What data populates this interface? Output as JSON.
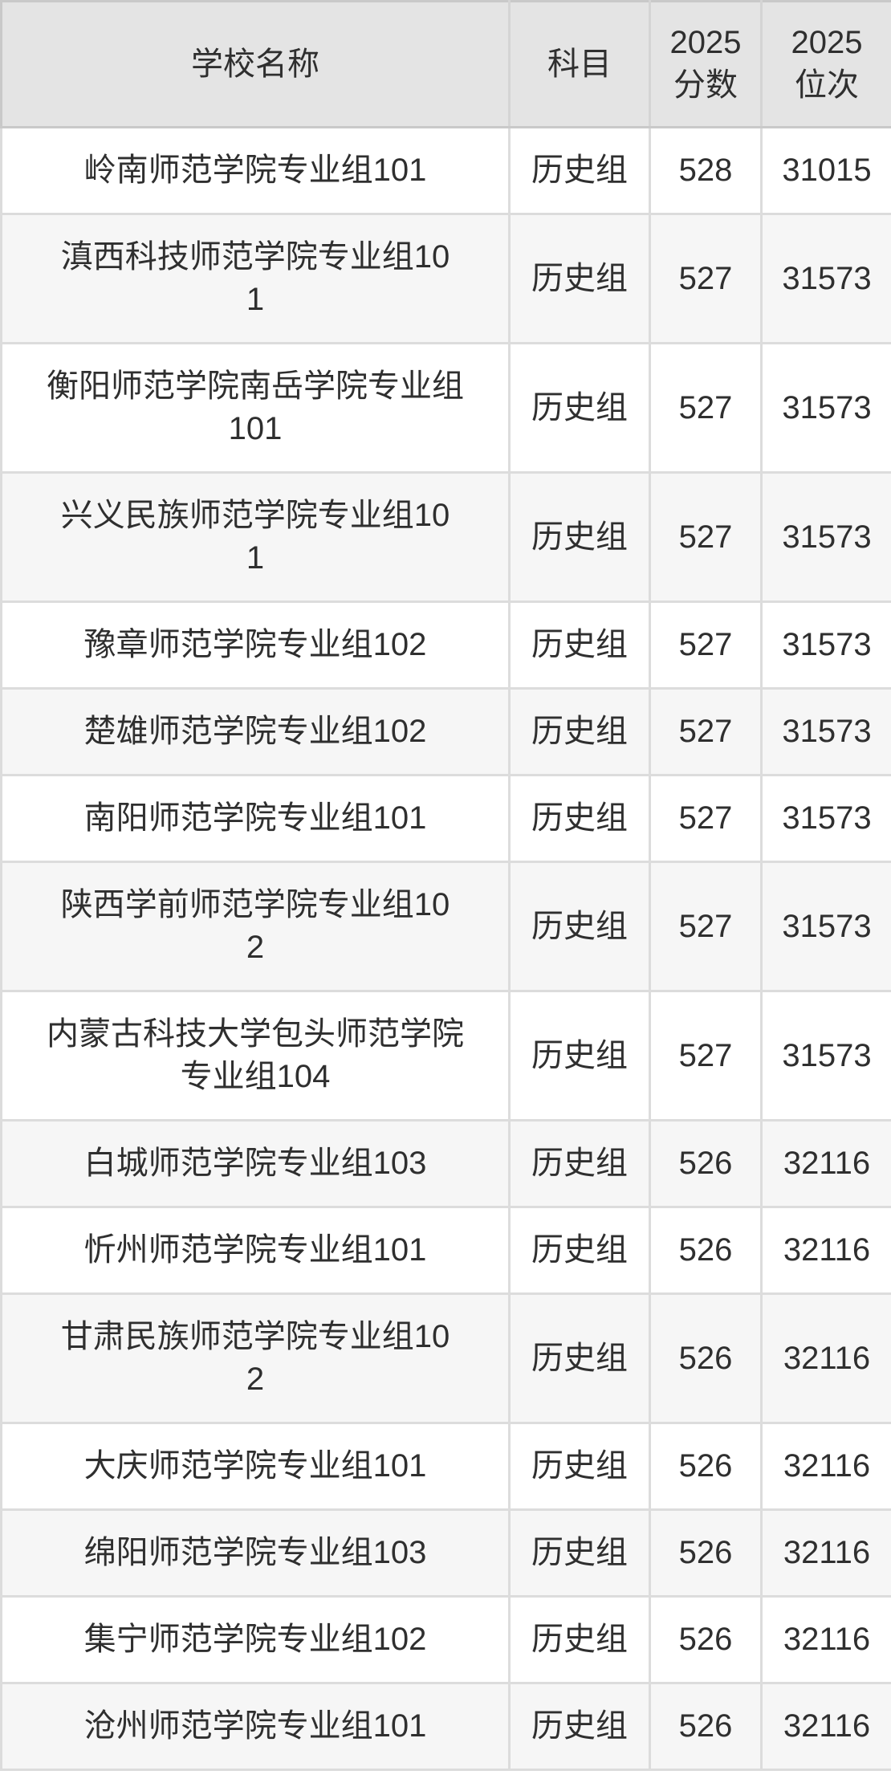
{
  "colors": {
    "header_bg": "#e4e4e4",
    "row_bg": "#ffffff",
    "row_alt_bg": "#f6f6f6",
    "inner_border": "#dcdcdc",
    "outer_border": "#c9c9c9",
    "text": "#2f2f2f"
  },
  "table": {
    "columns": [
      {
        "key": "school",
        "label": "学校名称"
      },
      {
        "key": "subject",
        "label": "科目"
      },
      {
        "key": "score",
        "label": "2025\n分数"
      },
      {
        "key": "rank",
        "label": "2025\n位次"
      }
    ],
    "rows": [
      {
        "school": "岭南师范学院专业组101",
        "subject": "历史组",
        "score": "528",
        "rank": "31015"
      },
      {
        "school": "滇西科技师范学院专业组10\n1",
        "subject": "历史组",
        "score": "527",
        "rank": "31573"
      },
      {
        "school": "衡阳师范学院南岳学院专业组\n101",
        "subject": "历史组",
        "score": "527",
        "rank": "31573"
      },
      {
        "school": "兴义民族师范学院专业组10\n1",
        "subject": "历史组",
        "score": "527",
        "rank": "31573"
      },
      {
        "school": "豫章师范学院专业组102",
        "subject": "历史组",
        "score": "527",
        "rank": "31573"
      },
      {
        "school": "楚雄师范学院专业组102",
        "subject": "历史组",
        "score": "527",
        "rank": "31573"
      },
      {
        "school": "南阳师范学院专业组101",
        "subject": "历史组",
        "score": "527",
        "rank": "31573"
      },
      {
        "school": "陕西学前师范学院专业组10\n2",
        "subject": "历史组",
        "score": "527",
        "rank": "31573"
      },
      {
        "school": "内蒙古科技大学包头师范学院\n专业组104",
        "subject": "历史组",
        "score": "527",
        "rank": "31573"
      },
      {
        "school": "白城师范学院专业组103",
        "subject": "历史组",
        "score": "526",
        "rank": "32116"
      },
      {
        "school": "忻州师范学院专业组101",
        "subject": "历史组",
        "score": "526",
        "rank": "32116"
      },
      {
        "school": "甘肃民族师范学院专业组10\n2",
        "subject": "历史组",
        "score": "526",
        "rank": "32116"
      },
      {
        "school": "大庆师范学院专业组101",
        "subject": "历史组",
        "score": "526",
        "rank": "32116"
      },
      {
        "school": "绵阳师范学院专业组103",
        "subject": "历史组",
        "score": "526",
        "rank": "32116"
      },
      {
        "school": "集宁师范学院专业组102",
        "subject": "历史组",
        "score": "526",
        "rank": "32116"
      },
      {
        "school": "沧州师范学院专业组101",
        "subject": "历史组",
        "score": "526",
        "rank": "32116"
      }
    ]
  }
}
